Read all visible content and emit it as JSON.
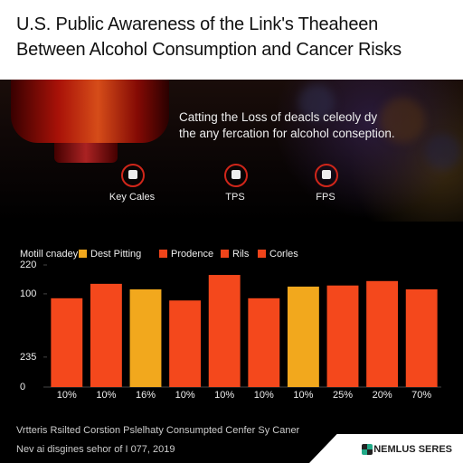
{
  "chart_data": {
    "type": "bar",
    "title": [
      "U.S. Public Awareness of the Link's Theaheen",
      "Between Alcohol Consumption and Cancer Risks"
    ],
    "legend_title": "Motill cnadey",
    "legend": [
      {
        "name": "Dest Pitting",
        "color": "#f2a81d"
      },
      {
        "name": "Prodence",
        "color": "#f0441a"
      },
      {
        "name": "Rils",
        "color": "#f0441a"
      },
      {
        "name": "Corles",
        "color": "#f0441a"
      }
    ],
    "categories": [
      "10%",
      "10%",
      "16%",
      "10%",
      "10%",
      "10%",
      "10%",
      "25%",
      "20%",
      "70%"
    ],
    "values": [
      160,
      186,
      176,
      156,
      202,
      160,
      181,
      183,
      191,
      176
    ],
    "colors": [
      "#f4481c",
      "#f4481c",
      "#f2a81d",
      "#f4481c",
      "#f4481c",
      "#f4481c",
      "#f2a81d",
      "#f4481c",
      "#f4481c",
      "#f4481c"
    ],
    "ylim": [
      0,
      220
    ],
    "yticks": [
      0,
      {
        "value": 54,
        "label": "235"
      },
      {
        "value": 168,
        "label": "100"
      },
      220
    ]
  },
  "hero": {
    "text": [
      "Catting the Loss of deacls celeoly dy",
      "the any fercation for alcohol conseption."
    ],
    "icons": [
      "Key Cales",
      "TPS",
      "FPS"
    ]
  },
  "footer": {
    "lines": [
      "Vrtteris Rsilted Corstion Pslelhaty Consumpted Cenfer Sy Caner",
      "Nev ai disgines sehor of I 077, 2019"
    ],
    "brand": "NEMLUS SERES"
  }
}
